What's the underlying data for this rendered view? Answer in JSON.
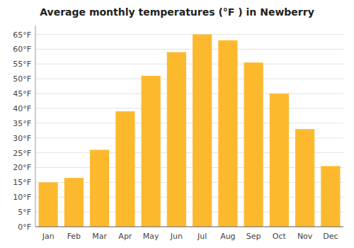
{
  "chart_data": {
    "type": "bar",
    "title": "Average monthly temperatures (°F ) in Newberry",
    "categories": [
      "Jan",
      "Feb",
      "Mar",
      "Apr",
      "May",
      "Jun",
      "Jul",
      "Aug",
      "Sep",
      "Oct",
      "Nov",
      "Dec"
    ],
    "values": [
      15,
      16.5,
      26,
      39,
      51,
      59,
      65,
      63,
      55.5,
      45,
      33,
      20.5
    ],
    "color": "#FDB92E",
    "ylim": [
      0,
      68
    ],
    "yticks": [
      {
        "value": 0,
        "label": "0°F"
      },
      {
        "value": 5,
        "label": "5°F"
      },
      {
        "value": 10,
        "label": "10°F"
      },
      {
        "value": 15,
        "label": "15°F"
      },
      {
        "value": 20,
        "label": "20°F"
      },
      {
        "value": 25,
        "label": "25°F"
      },
      {
        "value": 30,
        "label": "30°F"
      },
      {
        "value": 35,
        "label": "35°F"
      },
      {
        "value": 40,
        "label": "40°F"
      },
      {
        "value": 45,
        "label": "45°F"
      },
      {
        "value": 50,
        "label": "50°F"
      },
      {
        "value": 55,
        "label": "55°F"
      },
      {
        "value": 60,
        "label": "60°F"
      },
      {
        "value": 65,
        "label": "65°F"
      }
    ],
    "grid": true
  }
}
